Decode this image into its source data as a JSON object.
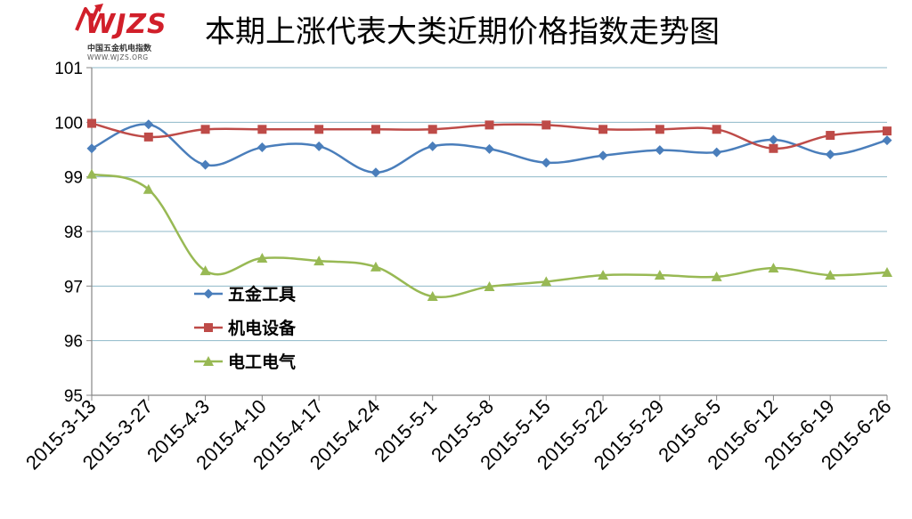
{
  "logo": {
    "text": "WJZS",
    "subtitle_cn": "中国五金机电指数",
    "subtitle_url": "WWW.WJZS.ORG"
  },
  "chart_data": {
    "type": "line",
    "title": "本期上涨代表大类近期价格指数走势图",
    "xlabel": "",
    "ylabel": "",
    "ylim": [
      95,
      101
    ],
    "yticks": [
      95,
      96,
      97,
      98,
      99,
      100,
      101
    ],
    "grid": "horizontal",
    "legend_position": "center-left",
    "categories": [
      "2015-3-13",
      "2015-3-27",
      "2015-4-3",
      "2015-4-10",
      "2015-4-17",
      "2015-4-24",
      "2015-5-1",
      "2015-5-8",
      "2015-5-15",
      "2015-5-22",
      "2015-5-29",
      "2015-6-5",
      "2015-6-12",
      "2015-6-19",
      "2015-6-26"
    ],
    "series": [
      {
        "name": "五金工具",
        "color": "#4a7ebb",
        "marker": "diamond",
        "values": [
          99.52,
          99.96,
          99.22,
          99.54,
          99.56,
          99.08,
          99.56,
          99.51,
          99.26,
          99.39,
          99.49,
          99.45,
          99.68,
          99.41,
          99.67
        ]
      },
      {
        "name": "机电设备",
        "color": "#be4b48",
        "marker": "square",
        "values": [
          99.98,
          99.73,
          99.87,
          99.87,
          99.87,
          99.87,
          99.87,
          99.95,
          99.95,
          99.87,
          99.87,
          99.87,
          99.52,
          99.76,
          99.84
        ]
      },
      {
        "name": "电工电气",
        "color": "#98b954",
        "marker": "triangle",
        "values": [
          99.05,
          98.77,
          97.28,
          97.51,
          97.46,
          97.35,
          96.81,
          96.99,
          97.08,
          97.2,
          97.2,
          97.17,
          97.33,
          97.2,
          97.25
        ]
      }
    ]
  }
}
